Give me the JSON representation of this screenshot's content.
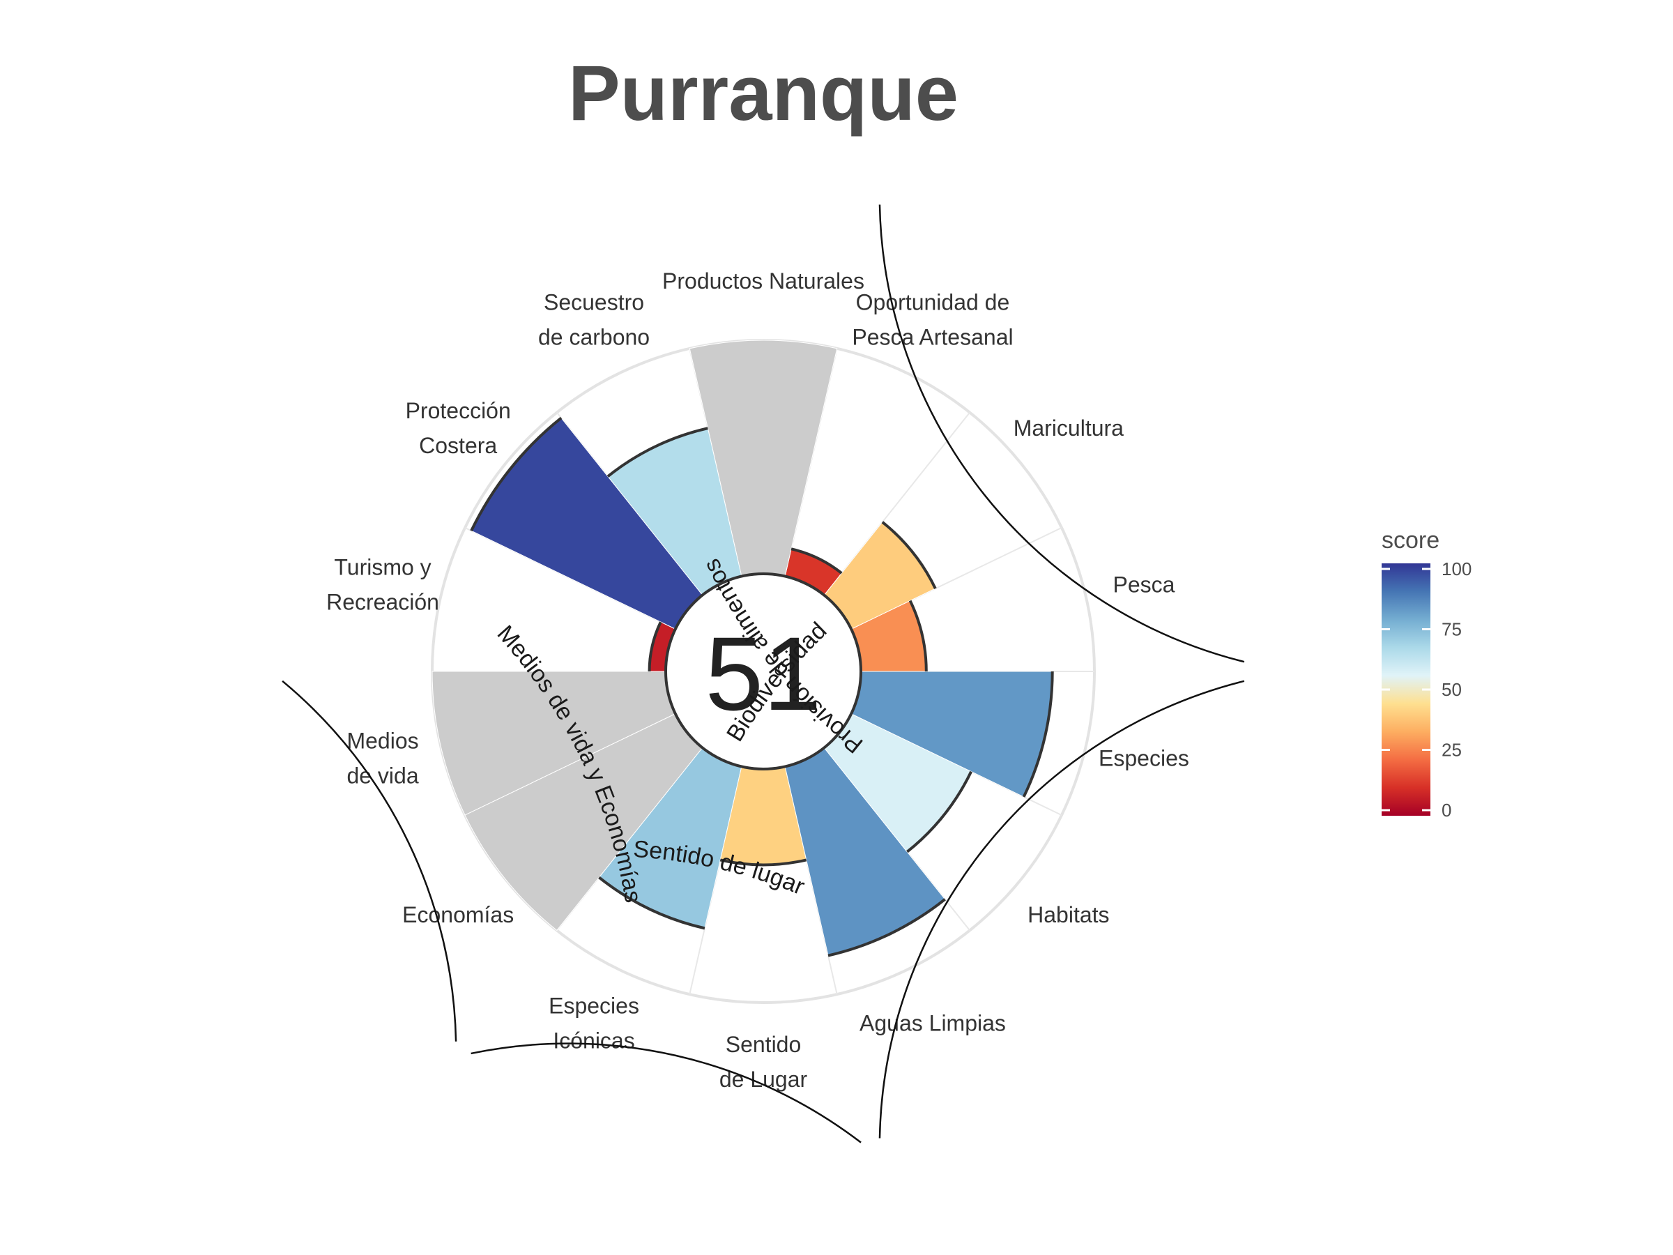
{
  "chart_data": {
    "type": "polar-bar",
    "title": "Purranque",
    "center_score": "51",
    "scale_max": 100,
    "goals": [
      {
        "name": "pesca",
        "label": [
          "Pesca"
        ],
        "score": 28,
        "na": false
      },
      {
        "name": "maricultura",
        "label": [
          "Maricultura"
        ],
        "score": 40,
        "na": false
      },
      {
        "name": "oportunidad",
        "label": [
          "Oportunidad de",
          "Pesca Artesanal"
        ],
        "score": 12,
        "na": false
      },
      {
        "name": "productos",
        "label": [
          "Productos Naturales"
        ],
        "score": 100,
        "na": true
      },
      {
        "name": "carbono",
        "label": [
          "Secuestro",
          "de carbono"
        ],
        "score": 65,
        "na": false
      },
      {
        "name": "proteccion",
        "label": [
          "Protección",
          "Costera"
        ],
        "score": 97,
        "na": false
      },
      {
        "name": "turismo",
        "label": [
          "Turismo y",
          "Recreación"
        ],
        "score": 7,
        "na": false
      },
      {
        "name": "medios",
        "label": [
          "Medios",
          "de vida"
        ],
        "score": 100,
        "na": true
      },
      {
        "name": "economias",
        "label": [
          "Economías"
        ],
        "score": 100,
        "na": true
      },
      {
        "name": "iconicas",
        "label": [
          "Especies",
          "Icónicas"
        ],
        "score": 71,
        "na": false
      },
      {
        "name": "lugar",
        "label": [
          "Sentido",
          "de Lugar"
        ],
        "score": 41,
        "na": false
      },
      {
        "name": "aguas",
        "label": [
          "Aguas Limpias"
        ],
        "score": 83,
        "na": false
      },
      {
        "name": "habitats",
        "label": [
          "Habitats"
        ],
        "score": 57,
        "na": false
      },
      {
        "name": "especies",
        "label": [
          "Especies"
        ],
        "score": 82,
        "na": false
      }
    ],
    "groups": [
      {
        "label": "Provisión de alimentos"
      },
      {
        "label": "Biodiversidad"
      },
      {
        "label": "Sentido de lugar"
      },
      {
        "label": "Medios de vida y Economías"
      }
    ],
    "legend": {
      "title": "score",
      "ticks": [
        "0",
        "25",
        "50",
        "75",
        "100"
      ],
      "colors": [
        "#a50026",
        "#d73027",
        "#f46d43",
        "#fdae61",
        "#fee090",
        "#e0f3f8",
        "#abd9e9",
        "#74add1",
        "#4575b4",
        "#313695"
      ]
    },
    "na_color": "#cccccc"
  }
}
